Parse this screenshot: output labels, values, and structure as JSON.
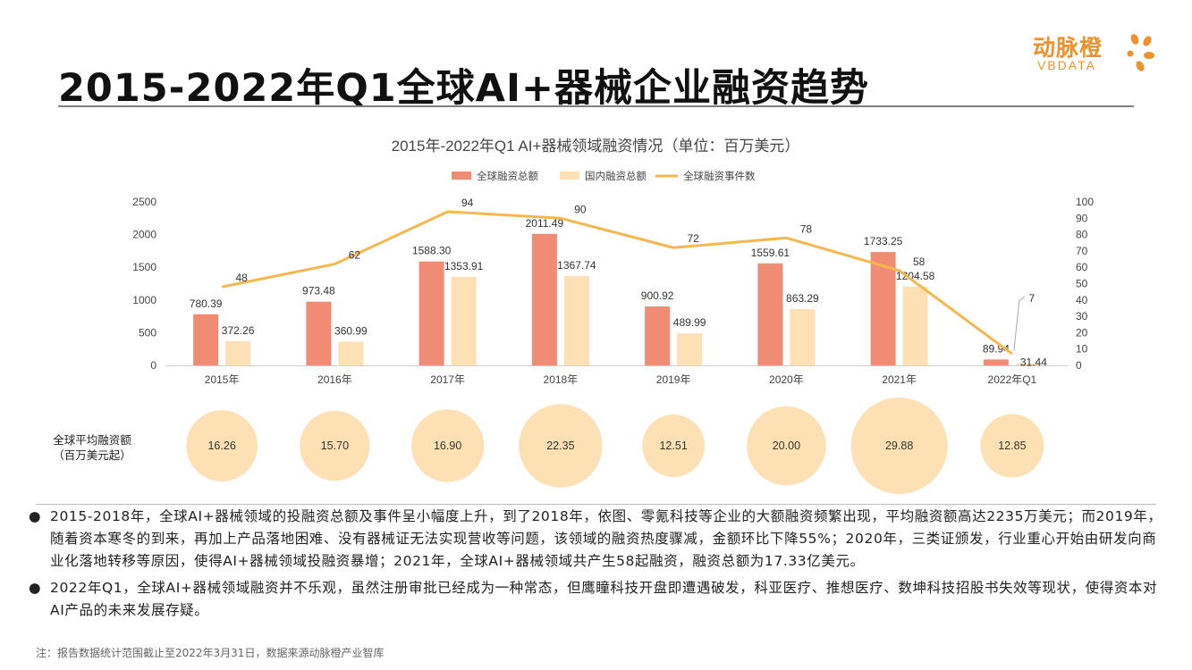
{
  "header": {
    "title": "2015-2022年Q1全球AI+器械企业融资趋势",
    "logo_cn": "动脉橙",
    "logo_en": "VBDATA"
  },
  "colors": {
    "global_bar": "#f08c73",
    "domestic_bar": "#fde0b4",
    "line": "#f6b84e",
    "bubble": "#fde0b4",
    "logo": "#f0922b"
  },
  "chart_data": {
    "type": "bar",
    "title": "2015年-2022年Q1 AI+器械领域融资情况（单位：百万美元）",
    "categories": [
      "2015年",
      "2016年",
      "2017年",
      "2018年",
      "2019年",
      "2020年",
      "2021年",
      "2022年Q1"
    ],
    "series": [
      {
        "name": "全球融资总额",
        "type": "bar",
        "axis": "left",
        "values": [
          780.39,
          973.48,
          1588.3,
          2011.49,
          900.92,
          1559.61,
          1733.25,
          89.94
        ]
      },
      {
        "name": "国内融资总额",
        "type": "bar",
        "axis": "left",
        "values": [
          372.26,
          360.99,
          1353.91,
          1367.74,
          489.99,
          863.29,
          1204.58,
          31.44
        ]
      },
      {
        "name": "全球融资事件数",
        "type": "line",
        "axis": "right",
        "values": [
          48,
          62,
          94,
          90,
          72,
          78,
          58,
          7
        ]
      }
    ],
    "y_left": {
      "min": 0,
      "max": 2500,
      "ticks": [
        0,
        500,
        1000,
        1500,
        2000,
        2500
      ]
    },
    "y_right": {
      "min": 0,
      "max": 100,
      "ticks": [
        0,
        10,
        20,
        30,
        40,
        50,
        60,
        70,
        80,
        90,
        100
      ]
    },
    "legend_position": "top-center",
    "bubble_row": {
      "label_line1": "全球平均融资额",
      "label_line2": "（百万美元起）",
      "values": [
        16.26,
        15.7,
        16.9,
        22.35,
        12.51,
        20.0,
        29.88,
        12.85
      ]
    }
  },
  "bullets": [
    "2015-2018年，全球AI+器械领域的投融资总额及事件呈小幅度上升，到了2018年，依图、零氪科技等企业的大额融资频繁出现，平均融资额高达2235万美元；而2019年，随着资本寒冬的到来，再加上产品落地困难、没有器械证无法实现营收等问题，该领域的融资热度骤减，金额环比下降55%；2020年，三类证颁发，行业重心开始由研发向商业化落地转移等原因，使得AI+器械领域投融资暴增；2021年，全球AI+器械领域共产生58起融资，融资总额为17.33亿美元。",
    "2022年Q1，全球AI+器械领域融资并不乐观，虽然注册审批已经成为一种常态，但鹰瞳科技开盘即遭遇破发，科亚医疗、推想医疗、数坤科技招股书失效等现状，使得资本对AI产品的未来发展存疑。"
  ],
  "bullet_symbol": "●",
  "footnote": "注：报告数据统计范围截止至2022年3月31日，数据来源动脉橙产业智库"
}
